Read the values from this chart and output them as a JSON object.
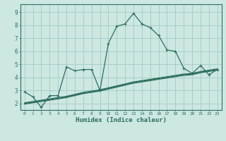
{
  "xlabel": "Humidex (Indice chaleur)",
  "bg_color": "#cce8e0",
  "grid_color": "#a8cfc8",
  "line_color": "#2d6e60",
  "xlim": [
    -0.5,
    23.5
  ],
  "ylim": [
    1.5,
    9.6
  ],
  "xticks": [
    0,
    1,
    2,
    3,
    4,
    5,
    6,
    7,
    8,
    9,
    10,
    11,
    12,
    13,
    14,
    15,
    16,
    17,
    18,
    19,
    20,
    21,
    22,
    23
  ],
  "yticks": [
    2,
    3,
    4,
    5,
    6,
    7,
    8,
    9
  ],
  "line1_x": [
    0,
    1,
    2,
    3,
    4,
    5,
    6,
    7,
    8,
    9,
    10,
    11,
    12,
    13,
    14,
    15,
    16,
    17,
    18,
    19,
    20,
    21,
    22,
    23
  ],
  "line1_y": [
    2.9,
    2.5,
    1.7,
    2.6,
    2.6,
    4.8,
    4.5,
    4.6,
    4.6,
    3.0,
    6.6,
    7.9,
    8.1,
    8.9,
    8.1,
    7.8,
    7.2,
    6.1,
    6.0,
    4.7,
    4.3,
    4.9,
    4.2,
    4.6
  ],
  "line2_x": [
    0,
    1,
    2,
    3,
    4,
    5,
    6,
    7,
    8,
    9,
    10,
    11,
    12,
    13,
    14,
    15,
    16,
    17,
    18,
    19,
    20,
    21,
    22,
    23
  ],
  "line2_y": [
    2.0,
    2.1,
    2.2,
    2.3,
    2.4,
    2.5,
    2.65,
    2.8,
    2.9,
    3.0,
    3.15,
    3.3,
    3.45,
    3.6,
    3.7,
    3.8,
    3.9,
    4.0,
    4.1,
    4.2,
    4.25,
    4.4,
    4.5,
    4.6
  ],
  "line3_x": [
    0,
    1,
    2,
    3,
    4,
    5,
    6,
    7,
    8,
    9,
    10,
    11,
    12,
    13,
    14,
    15,
    16,
    17,
    18,
    19,
    20,
    21,
    22,
    23
  ],
  "line3_y": [
    2.05,
    2.15,
    2.25,
    2.35,
    2.45,
    2.55,
    2.7,
    2.85,
    2.95,
    3.05,
    3.2,
    3.35,
    3.5,
    3.65,
    3.75,
    3.85,
    3.95,
    4.05,
    4.15,
    4.25,
    4.3,
    4.45,
    4.55,
    4.65
  ],
  "line4_x": [
    0,
    1,
    2,
    3,
    4,
    5,
    6,
    7,
    8,
    9,
    10,
    11,
    12,
    13,
    14,
    15,
    16,
    17,
    18,
    19,
    20,
    21,
    22,
    23
  ],
  "line4_y": [
    1.95,
    2.05,
    2.15,
    2.25,
    2.35,
    2.45,
    2.6,
    2.75,
    2.85,
    2.95,
    3.1,
    3.25,
    3.4,
    3.55,
    3.65,
    3.75,
    3.85,
    3.95,
    4.05,
    4.15,
    4.2,
    4.35,
    4.45,
    4.55
  ]
}
